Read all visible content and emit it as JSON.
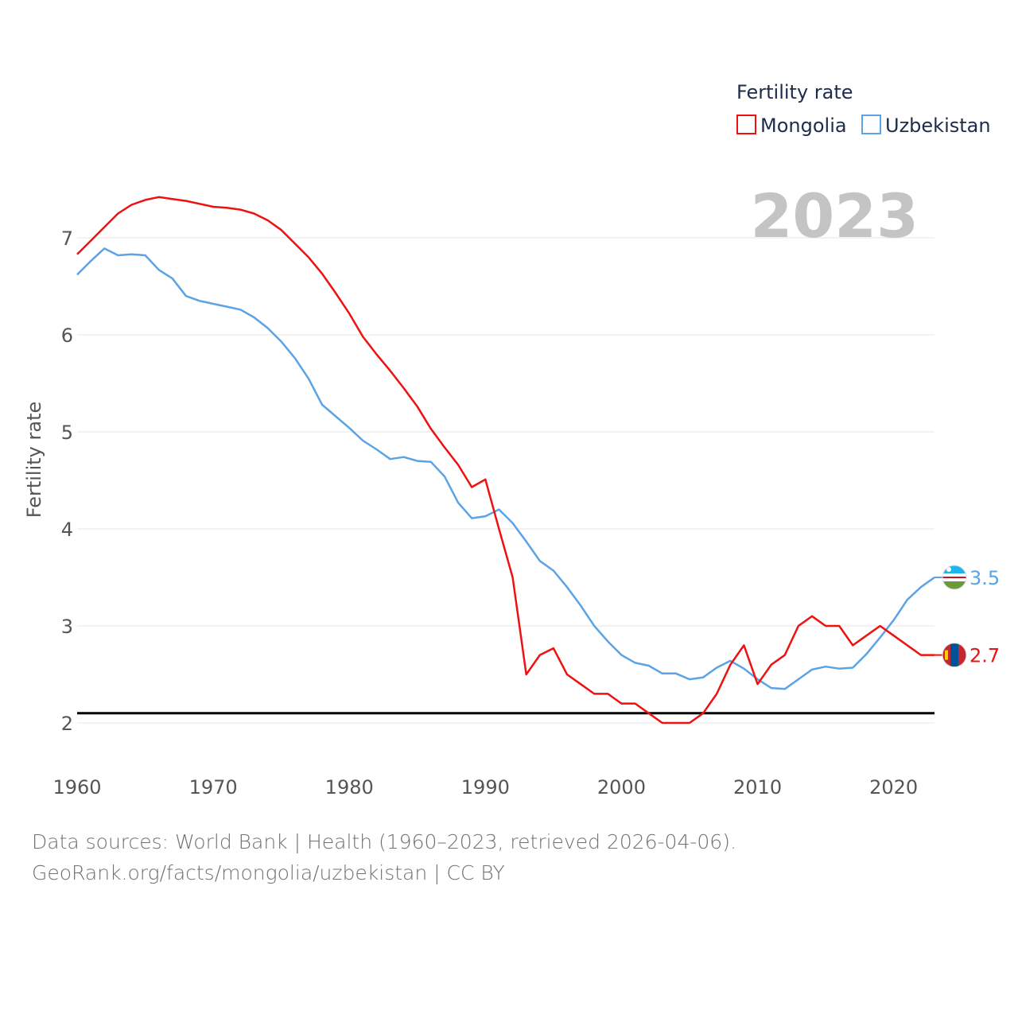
{
  "chart_data": {
    "type": "line",
    "ylabel": "Fertility rate",
    "xlim": [
      1960,
      2023
    ],
    "ylim": [
      1.5,
      7.5
    ],
    "x_ticks": [
      1960,
      1970,
      1980,
      1990,
      2000,
      2010,
      2020
    ],
    "y_ticks": [
      2,
      3,
      4,
      5,
      6,
      7
    ],
    "y_tick_labels": [
      "2",
      "3",
      "4",
      "5",
      "6",
      "7"
    ],
    "year_label": "2023",
    "legend": {
      "title": "Fertility rate",
      "placement": "top-right"
    },
    "reference_line": {
      "y": 2.1,
      "color": "#000000"
    },
    "x": [
      1960,
      1961,
      1962,
      1963,
      1964,
      1965,
      1966,
      1967,
      1968,
      1969,
      1970,
      1971,
      1972,
      1973,
      1974,
      1975,
      1976,
      1977,
      1978,
      1979,
      1980,
      1981,
      1982,
      1983,
      1984,
      1985,
      1986,
      1987,
      1988,
      1989,
      1990,
      1991,
      1992,
      1993,
      1994,
      1995,
      1996,
      1997,
      1998,
      1999,
      2000,
      2001,
      2002,
      2003,
      2004,
      2005,
      2006,
      2007,
      2008,
      2009,
      2010,
      2011,
      2012,
      2013,
      2014,
      2015,
      2016,
      2017,
      2018,
      2019,
      2020,
      2021,
      2022,
      2023
    ],
    "series": [
      {
        "name": "Mongolia",
        "color": "#ee1111",
        "end_label": "2.7",
        "flag": "mongolia",
        "values": [
          6.83,
          6.97,
          7.11,
          7.25,
          7.34,
          7.39,
          7.42,
          7.4,
          7.38,
          7.35,
          7.32,
          7.31,
          7.29,
          7.25,
          7.18,
          7.08,
          6.94,
          6.8,
          6.63,
          6.43,
          6.22,
          5.98,
          5.8,
          5.63,
          5.45,
          5.26,
          5.03,
          4.84,
          4.66,
          4.43,
          4.51,
          4.0,
          3.5,
          2.5,
          2.7,
          2.77,
          2.5,
          2.4,
          2.3,
          2.3,
          2.2,
          2.2,
          2.1,
          2.0,
          2.0,
          2.0,
          2.1,
          2.3,
          2.6,
          2.8,
          2.4,
          2.6,
          2.7,
          3.0,
          3.1,
          3.0,
          3.0,
          2.8,
          2.9,
          3.0,
          2.9,
          2.8,
          2.7,
          2.7
        ]
      },
      {
        "name": "Uzbekistan",
        "color": "#5ba3e5",
        "end_label": "3.5",
        "flag": "uzbekistan",
        "values": [
          6.62,
          6.76,
          6.89,
          6.82,
          6.83,
          6.82,
          6.67,
          6.58,
          6.4,
          6.35,
          6.32,
          6.29,
          6.26,
          6.18,
          6.07,
          5.93,
          5.76,
          5.55,
          5.28,
          5.16,
          5.04,
          4.91,
          4.82,
          4.72,
          4.74,
          4.7,
          4.69,
          4.54,
          4.27,
          4.11,
          4.13,
          4.2,
          4.06,
          3.87,
          3.67,
          3.57,
          3.4,
          3.21,
          3.0,
          2.84,
          2.7,
          2.62,
          2.59,
          2.51,
          2.51,
          2.45,
          2.47,
          2.57,
          2.64,
          2.56,
          2.45,
          2.36,
          2.35,
          2.45,
          2.55,
          2.58,
          2.56,
          2.57,
          2.71,
          2.88,
          3.06,
          3.27,
          3.4,
          3.5
        ]
      }
    ]
  },
  "footer": {
    "sources": "Data sources: World Bank | Health (1960–2023, retrieved 2026-04-06).",
    "license": "GeoRank.org/facts/mongolia/uzbekistan | CC BY"
  }
}
